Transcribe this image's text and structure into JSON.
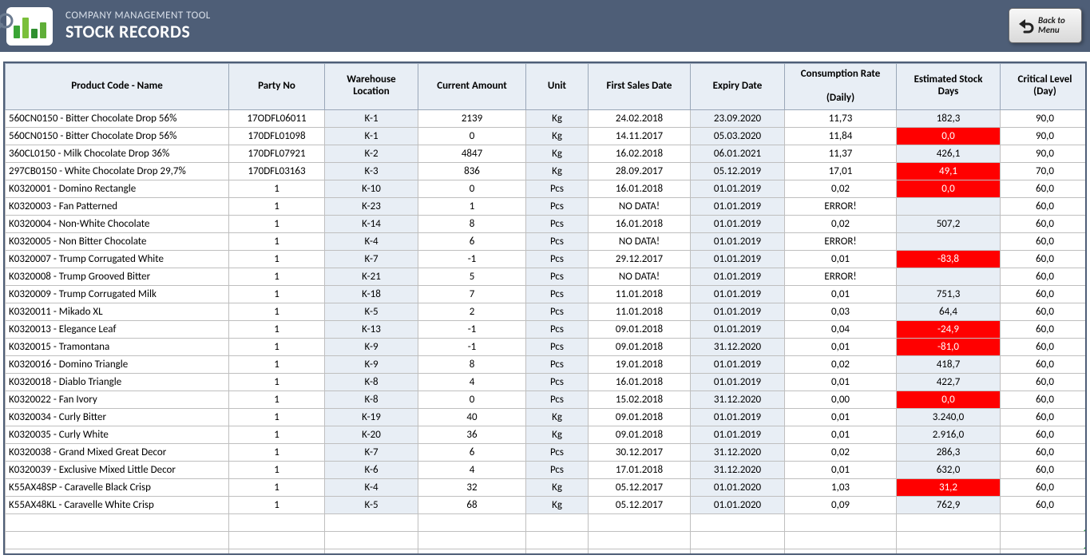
{
  "header": {
    "app_title": "COMPANY MANAGEMENT TOOL",
    "page_title": "STOCK RECORDS",
    "back_line1": "Back to",
    "back_line2": "Menu",
    "bg_color": "#4e5e77",
    "logo_bar_colors": [
      "#3aa535",
      "#7abf3a",
      "#2f8f2f",
      "#5fae38"
    ],
    "logo_bar_heights": [
      16,
      26,
      12,
      20
    ]
  },
  "table": {
    "header_bg": "#e8eef5",
    "alt_bg": "#e8eef5",
    "alert_bg": "#ff0000",
    "border_color": "#bfbfbf",
    "columns": [
      "Product Code - Name",
      "Party No",
      "Warehouse Location",
      "Current Amount",
      "Unit",
      "First Sales Date",
      "Expiry Date",
      "Consumption Rate (Daily)",
      "Estimated Stock Days",
      "Critical Level (Day)"
    ],
    "alt_col_indices": [
      2,
      4,
      6,
      8
    ],
    "name_col_index": 0,
    "alert_col_index": 8,
    "rows": [
      {
        "c": [
          "560CN0150 - Bitter Chocolate Drop 56%",
          "17ODFL06011",
          "K-1",
          "2139",
          "Kg",
          "24.02.2018",
          "23.09.2020",
          "11,73",
          "182,3",
          "90,0"
        ],
        "alert": false
      },
      {
        "c": [
          "560CN0150 - Bitter Chocolate Drop 56%",
          "170DFL01098",
          "K-1",
          "0",
          "Kg",
          "14.11.2017",
          "05.03.2020",
          "11,84",
          "0,0",
          "90,0"
        ],
        "alert": true
      },
      {
        "c": [
          "360CL0150 - Milk Chocolate Drop 36%",
          "170DFL07921",
          "K-2",
          "4847",
          "Kg",
          "16.02.2018",
          "06.01.2021",
          "11,37",
          "426,1",
          "90,0"
        ],
        "alert": false
      },
      {
        "c": [
          "297CB0150 - White Chocolate Drop 29,7%",
          "170DFL03163",
          "K-3",
          "836",
          "Kg",
          "28.09.2017",
          "05.12.2019",
          "17,01",
          "49,1",
          "70,0"
        ],
        "alert": true
      },
      {
        "c": [
          "K0320001 - Domino Rectangle",
          "1",
          "K-10",
          "0",
          "Pcs",
          "16.01.2018",
          "01.01.2019",
          "0,02",
          "0,0",
          "60,0"
        ],
        "alert": true
      },
      {
        "c": [
          "K0320003 - Fan Patterned",
          "1",
          "K-23",
          "1",
          "Pcs",
          "NO DATA!",
          "01.01.2019",
          "ERROR!",
          "",
          "60,0"
        ],
        "alert": false
      },
      {
        "c": [
          "K0320004 - Non-White Chocolate",
          "1",
          "K-14",
          "8",
          "Pcs",
          "16.01.2018",
          "01.01.2019",
          "0,02",
          "507,2",
          "60,0"
        ],
        "alert": false
      },
      {
        "c": [
          "K0320005 - Non Bitter Chocolate",
          "1",
          "K-4",
          "6",
          "Pcs",
          "NO DATA!",
          "01.01.2019",
          "ERROR!",
          "",
          "60,0"
        ],
        "alert": false
      },
      {
        "c": [
          "K0320007 - Trump Corrugated White",
          "1",
          "K-7",
          "-1",
          "Pcs",
          "29.12.2017",
          "01.01.2019",
          "0,01",
          "-83,8",
          "60,0"
        ],
        "alert": true
      },
      {
        "c": [
          "K0320008 - Trump Grooved Bitter",
          "1",
          "K-21",
          "5",
          "Pcs",
          "NO DATA!",
          "01.01.2019",
          "ERROR!",
          "",
          "60,0"
        ],
        "alert": false
      },
      {
        "c": [
          "K0320009 - Trump Corrugated Milk",
          "1",
          "K-18",
          "7",
          "Pcs",
          "11.01.2018",
          "01.01.2019",
          "0,01",
          "751,3",
          "60,0"
        ],
        "alert": false
      },
      {
        "c": [
          "K0320011 - Mikado XL",
          "1",
          "K-5",
          "2",
          "Pcs",
          "11.01.2018",
          "01.01.2019",
          "0,03",
          "64,4",
          "60,0"
        ],
        "alert": false
      },
      {
        "c": [
          "K0320013 - Elegance Leaf",
          "1",
          "K-13",
          "-1",
          "Pcs",
          "09.01.2018",
          "01.01.2019",
          "0,04",
          "-24,9",
          "60,0"
        ],
        "alert": true
      },
      {
        "c": [
          "K0320015 - Tramontana",
          "1",
          "K-9",
          "-1",
          "Pcs",
          "09.01.2018",
          "31.12.2020",
          "0,01",
          "-81,0",
          "60,0"
        ],
        "alert": true
      },
      {
        "c": [
          "K0320016 - Domino Triangle",
          "1",
          "K-9",
          "8",
          "Pcs",
          "19.01.2018",
          "01.01.2019",
          "0,02",
          "418,7",
          "60,0"
        ],
        "alert": false
      },
      {
        "c": [
          "K0320018 - Diablo Triangle",
          "1",
          "K-8",
          "4",
          "Pcs",
          "16.01.2018",
          "01.01.2019",
          "0,01",
          "422,7",
          "60,0"
        ],
        "alert": false
      },
      {
        "c": [
          "K0320022 - Fan Ivory",
          "1",
          "K-8",
          "0",
          "Pcs",
          "15.02.2018",
          "31.12.2020",
          "0,00",
          "0,0",
          "60,0"
        ],
        "alert": true
      },
      {
        "c": [
          "K0320034 - Curly Bitter",
          "1",
          "K-19",
          "40",
          "Kg",
          "09.01.2018",
          "01.01.2019",
          "0,01",
          "3.240,0",
          "60,0"
        ],
        "alert": false
      },
      {
        "c": [
          "K0320035 - Curly White",
          "1",
          "K-20",
          "36",
          "Kg",
          "09.01.2018",
          "01.01.2019",
          "0,01",
          "2.916,0",
          "60,0"
        ],
        "alert": false
      },
      {
        "c": [
          "K0320038 - Grand Mixed Great Decor",
          "1",
          "K-7",
          "6",
          "Pcs",
          "30.12.2017",
          "31.12.2020",
          "0,02",
          "286,3",
          "60,0"
        ],
        "alert": false
      },
      {
        "c": [
          "K0320039 - Exclusive Mixed Little Decor",
          "1",
          "K-6",
          "4",
          "Pcs",
          "17.01.2018",
          "31.12.2020",
          "0,01",
          "632,0",
          "60,0"
        ],
        "alert": false
      },
      {
        "c": [
          "K55AX48SP - Caravelle Black Crisp",
          "1",
          "K-4",
          "32",
          "Kg",
          "05.12.2017",
          "01.01.2020",
          "1,03",
          "31,2",
          "60,0"
        ],
        "alert": true
      },
      {
        "c": [
          "K55AX48KL - Caravelle White Crisp",
          "1",
          "K-5",
          "68",
          "Kg",
          "05.12.2017",
          "01.01.2020",
          "0,09",
          "762,9",
          "60,0"
        ],
        "alert": false
      }
    ],
    "empty_row_count": 3
  }
}
